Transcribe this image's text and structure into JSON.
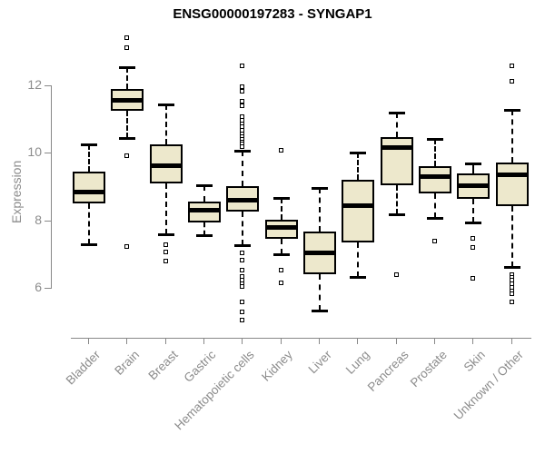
{
  "colors": {
    "box_fill": "#EDE8CC",
    "box_border": "#000000",
    "axis_line": "#888888",
    "axis_text": "#8C8C8C",
    "title_text": "#000000",
    "background": "#FFFFFF"
  },
  "chart_data": {
    "type": "boxplot",
    "title": "ENSG00000197283 - SYNGAP1",
    "ylabel": "Expression",
    "xlabel": "",
    "ylim": [
      4.8,
      13.6
    ],
    "yticks": [
      6,
      8,
      10,
      12
    ],
    "grid": false,
    "legend": false,
    "categories": [
      "Bladder",
      "Brain",
      "Breast",
      "Gastric",
      "Hematopoietic cells",
      "Kidney",
      "Liver",
      "Lung",
      "Pancreas",
      "Prostate",
      "Skin",
      "Unknown / Other"
    ],
    "series": [
      {
        "name": "Bladder",
        "whislo": 7.3,
        "q1": 8.5,
        "med": 8.85,
        "q3": 9.45,
        "whishi": 10.25,
        "outliers": []
      },
      {
        "name": "Brain",
        "whislo": 10.45,
        "q1": 11.25,
        "med": 11.55,
        "q3": 11.9,
        "whishi": 12.55,
        "outliers": [
          13.4,
          13.1,
          9.9,
          7.2
        ]
      },
      {
        "name": "Breast",
        "whislo": 7.6,
        "q1": 9.1,
        "med": 9.62,
        "q3": 10.25,
        "whishi": 11.43,
        "outliers": [
          7.26,
          7.05,
          6.77
        ]
      },
      {
        "name": "Gastric",
        "whislo": 7.55,
        "q1": 7.95,
        "med": 8.3,
        "q3": 8.55,
        "whishi": 9.05,
        "outliers": []
      },
      {
        "name": "Hematopoietic cells",
        "whislo": 7.26,
        "q1": 8.26,
        "med": 8.6,
        "q3": 9.0,
        "whishi": 10.06,
        "outliers": [
          12.57,
          11.95,
          11.8,
          11.52,
          11.38,
          11.05,
          10.95,
          10.85,
          10.75,
          10.65,
          10.55,
          10.47,
          10.39,
          10.31,
          10.24,
          10.17,
          7.02,
          6.81,
          6.5,
          6.32,
          6.22,
          6.12,
          6.04,
          5.58,
          5.27,
          5.04
        ]
      },
      {
        "name": "Kidney",
        "whislo": 7.0,
        "q1": 7.45,
        "med": 7.8,
        "q3": 8.02,
        "whishi": 8.66,
        "outliers": [
          10.06,
          6.52,
          6.13
        ]
      },
      {
        "name": "Liver",
        "whislo": 5.33,
        "q1": 6.4,
        "med": 7.03,
        "q3": 7.66,
        "whishi": 8.96,
        "outliers": []
      },
      {
        "name": "Lung",
        "whislo": 6.32,
        "q1": 7.35,
        "med": 8.44,
        "q3": 9.19,
        "whishi": 10.0,
        "outliers": []
      },
      {
        "name": "Pancreas",
        "whislo": 8.18,
        "q1": 9.04,
        "med": 10.17,
        "q3": 10.46,
        "whishi": 11.2,
        "outliers": [
          6.38
        ]
      },
      {
        "name": "Prostate",
        "whislo": 8.07,
        "q1": 8.8,
        "med": 9.3,
        "q3": 9.61,
        "whishi": 10.41,
        "outliers": [
          7.36
        ]
      },
      {
        "name": "Skin",
        "whislo": 7.94,
        "q1": 8.64,
        "med": 9.04,
        "q3": 9.39,
        "whishi": 9.68,
        "outliers": [
          7.44,
          7.18,
          6.27
        ]
      },
      {
        "name": "Unknown / Other",
        "whislo": 6.62,
        "q1": 8.42,
        "med": 9.35,
        "q3": 9.71,
        "whishi": 11.26,
        "outliers": [
          12.57,
          12.1,
          6.38,
          6.3,
          6.22,
          6.12,
          6.0,
          5.9,
          5.82,
          5.57
        ]
      }
    ]
  }
}
